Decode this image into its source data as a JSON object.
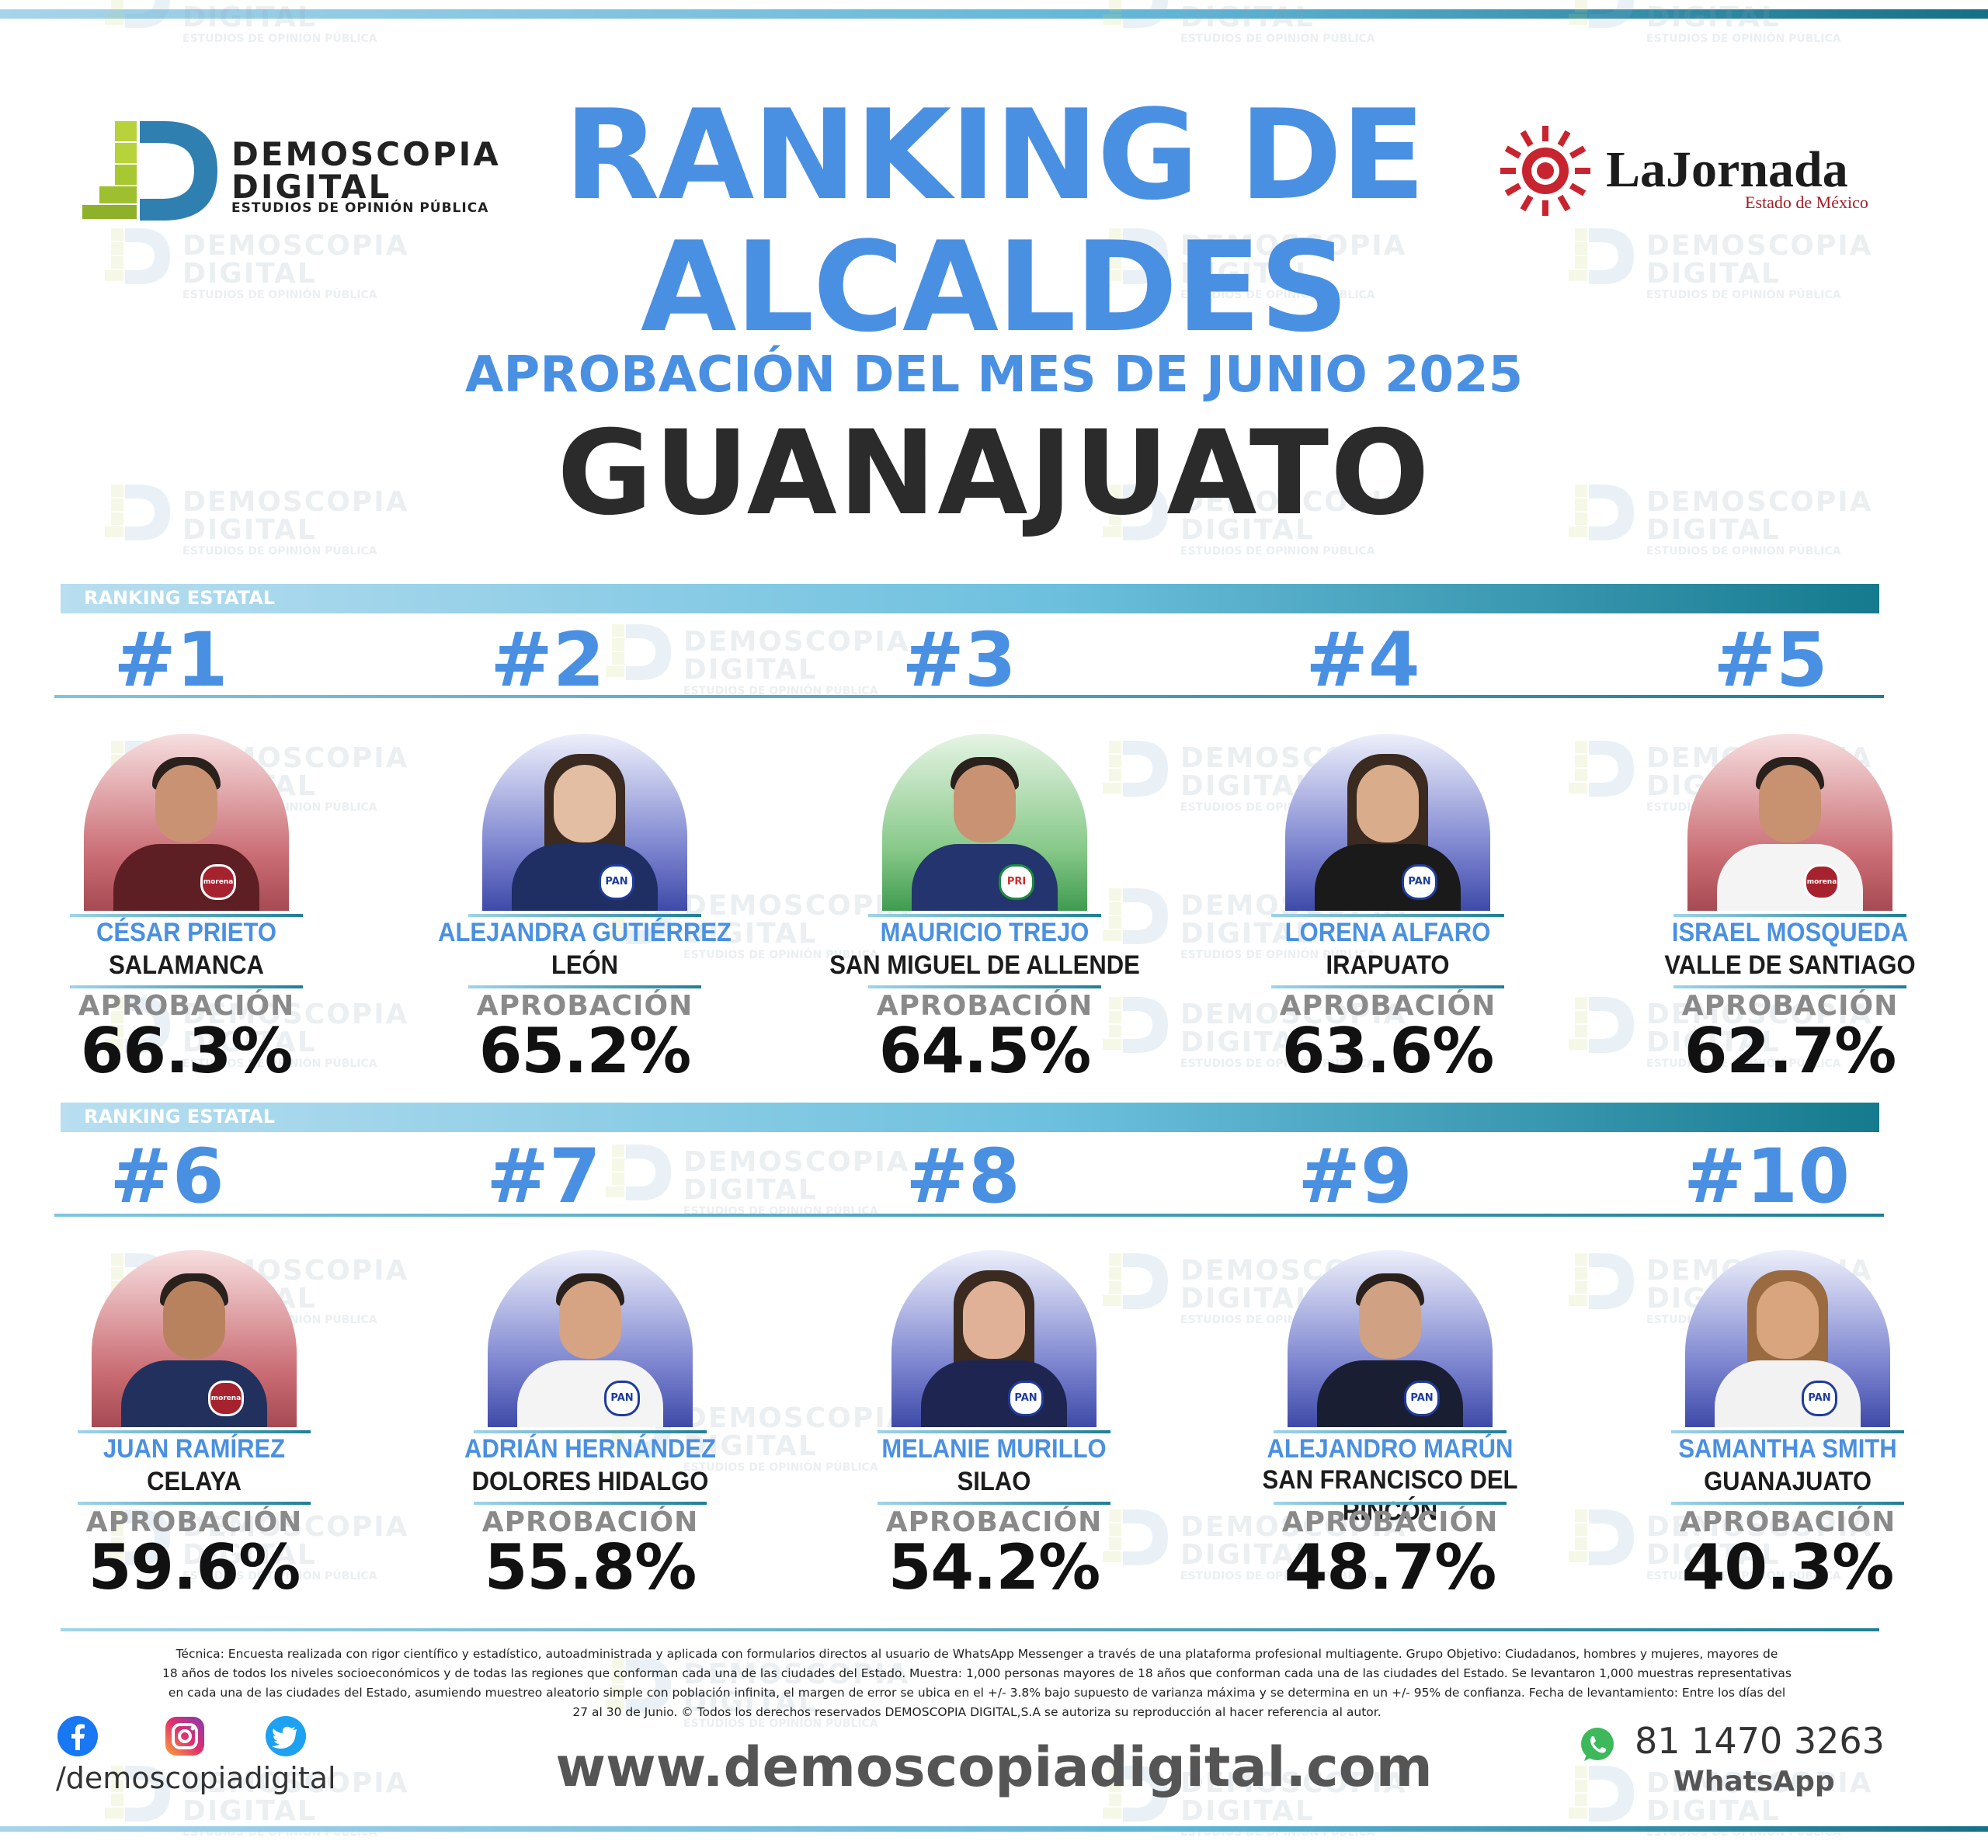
{
  "header": {
    "brand_line1": "DEMOSCOPIA",
    "brand_line2": "DIGITAL",
    "brand_sub": "ESTUDIOS DE OPINIÓN PÚBLICA",
    "title_line1": "RANKING DE",
    "title_line2": "ALCALDES",
    "subtitle": "APROBACIÓN DEL MES DE JUNIO 2025",
    "state": "GUANAJUATO",
    "partner_name": "LaJornada",
    "partner_sub": "Estado de México"
  },
  "sections": [
    {
      "label": "RANKING ESTATAL"
    },
    {
      "label": "RANKING ESTATAL"
    }
  ],
  "approval_label": "APROBACIÓN",
  "candidates": [
    {
      "rank": "#1",
      "name": "CÉSAR PRIETO",
      "city": "SALAMANCA",
      "approval": "66.3%",
      "party": "morena",
      "party_label": "morena"
    },
    {
      "rank": "#2",
      "name": "ALEJANDRA GUTIÉRREZ",
      "city": "LEÓN",
      "approval": "65.2%",
      "party": "pan",
      "party_label": "PAN"
    },
    {
      "rank": "#3",
      "name": "MAURICIO TREJO",
      "city": "SAN MIGUEL DE ALLENDE",
      "approval": "64.5%",
      "party": "pri",
      "party_label": "PRI"
    },
    {
      "rank": "#4",
      "name": "LORENA ALFARO",
      "city": "IRAPUATO",
      "approval": "63.6%",
      "party": "pan",
      "party_label": "PAN"
    },
    {
      "rank": "#5",
      "name": "ISRAEL MOSQUEDA",
      "city": "VALLE DE SANTIAGO",
      "approval": "62.7%",
      "party": "morena",
      "party_label": "morena"
    },
    {
      "rank": "#6",
      "name": "JUAN RAMÍREZ",
      "city": "CELAYA",
      "approval": "59.6%",
      "party": "morena",
      "party_label": "morena"
    },
    {
      "rank": "#7",
      "name": "ADRIÁN HERNÁNDEZ",
      "city": "DOLORES HIDALGO",
      "approval": "55.8%",
      "party": "pan",
      "party_label": "PAN"
    },
    {
      "rank": "#8",
      "name": "MELANIE MURILLO",
      "city": "SILAO",
      "approval": "54.2%",
      "party": "pan",
      "party_label": "PAN"
    },
    {
      "rank": "#9",
      "name": "ALEJANDRO MARÚN",
      "city": "SAN FRANCISCO DEL RINCÓN",
      "approval": "48.7%",
      "party": "pan",
      "party_label": "PAN"
    },
    {
      "rank": "#10",
      "name": "SAMANTHA SMITH",
      "city": "GUANAJUATO",
      "approval": "40.3%",
      "party": "pan",
      "party_label": "PAN"
    }
  ],
  "chart_data": {
    "type": "table",
    "title": "RANKING DE ALCALDES",
    "subtitle": "APROBACIÓN DEL MES DE JUNIO 2025",
    "categories": [
      "CÉSAR PRIETO",
      "ALEJANDRA GUTIÉRREZ",
      "MAURICIO TREJO",
      "LORENA ALFARO",
      "ISRAEL MOSQUEDA",
      "JUAN RAMÍREZ",
      "ADRIÁN HERNÁNDEZ",
      "MELANIE MURILLO",
      "ALEJANDRO MARÚN",
      "SAMANTHA SMITH"
    ],
    "series": [
      {
        "name": "APROBACIÓN",
        "values": [
          66.3,
          65.2,
          64.5,
          63.6,
          62.7,
          59.6,
          55.8,
          54.2,
          48.7,
          40.3
        ]
      }
    ]
  },
  "footer": {
    "methodology_lines": [
      "Técnica: Encuesta realizada con rigor científico y estadístico, autoadministrada y aplicada con formularios directos al usuario de WhatsApp Messenger a través de una plataforma profesional multiagente. Grupo Objetivo: Ciudadanos, hombres y mujeres, mayores de",
      "18 años de todos los niveles socioeconómicos y de todas las regiones que conforman cada una de las ciudades del Estado. Muestra: 1,000 personas mayores de 18 años que conforman cada una de las ciudades del Estado. Se levantaron 1,000 muestras representativas",
      "en cada una de las ciudades del Estado, asumiendo muestreo aleatorio simple con población infinita, el margen de error se ubica en el +/- 3.8% bajo supuesto de varianza máxima y se determina en un +/- 95% de confianza. Fecha de levantamiento: Entre los días del",
      "27 al 30 de Junio. © Todos los derechos reservados DEMOSCOPIA DIGITAL,S.A se autoriza su reproducción al hacer referencia al autor."
    ],
    "social_handle": "/demoscopiadigital",
    "website": "www.demoscopiadigital.com",
    "phone": "81 1470 3263",
    "phone_label": "WhatsApp"
  },
  "colors": {
    "title_blue": "#4a90e2",
    "morena": "#a7222f",
    "pan": "#1f3c99",
    "pri": "#1b8a3e"
  }
}
